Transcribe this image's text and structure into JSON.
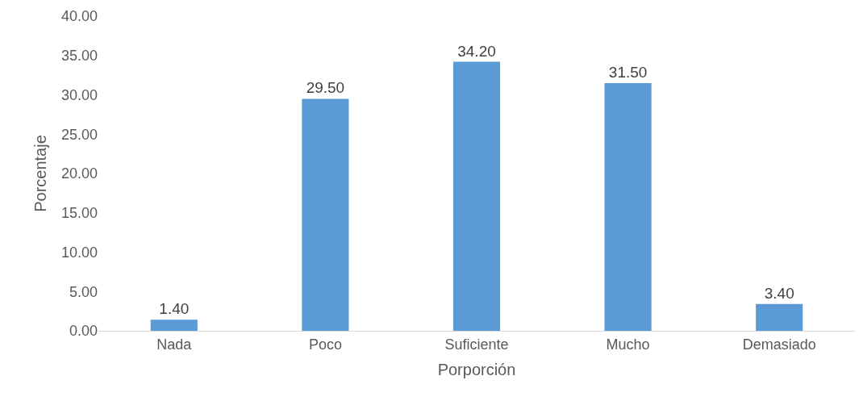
{
  "chart_data": {
    "type": "bar",
    "xlabel": "Porporción",
    "ylabel": "Porcentaje",
    "categories": [
      "Nada",
      "Poco",
      "Suficiente",
      "Mucho",
      "Demasiado"
    ],
    "series": [
      {
        "color": "#5b9bd5",
        "values": [
          1.4,
          29.5,
          34.2,
          31.5,
          3.4
        ],
        "value_labels": [
          "1.40",
          "29.50",
          "34.20",
          "31.50",
          "3.40"
        ]
      }
    ],
    "ylim": [
      0,
      40
    ],
    "yticks": [
      {
        "value": 0,
        "label": "0.00"
      },
      {
        "value": 5,
        "label": "5.00"
      },
      {
        "value": 10,
        "label": "10.00"
      },
      {
        "value": 15,
        "label": "15.00"
      },
      {
        "value": 20,
        "label": "20.00"
      },
      {
        "value": 25,
        "label": "25.00"
      },
      {
        "value": 30,
        "label": "30.00"
      },
      {
        "value": 35,
        "label": "35.00"
      },
      {
        "value": 40,
        "label": "40.00"
      }
    ],
    "data_labels": false
  }
}
